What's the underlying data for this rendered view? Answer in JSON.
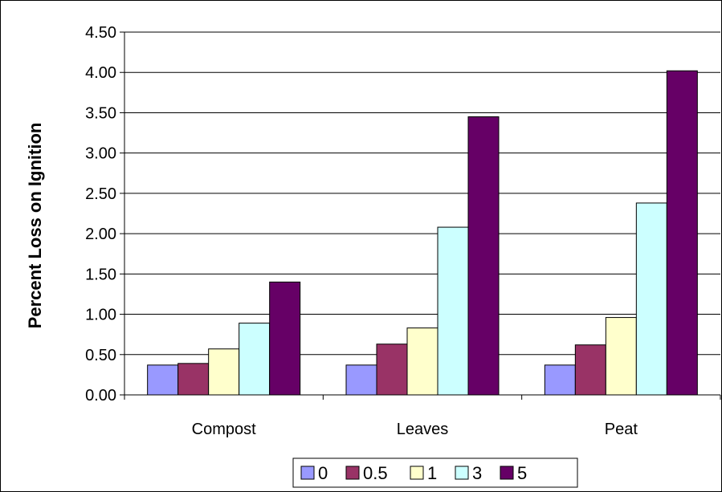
{
  "chart_data": {
    "type": "bar",
    "title": "",
    "xlabel": "",
    "ylabel": "Percent Loss on Ignition",
    "ylim": [
      0,
      4.5
    ],
    "ytick_step": 0.5,
    "ytick_labels": [
      "0.00",
      "0.50",
      "1.00",
      "1.50",
      "2.00",
      "2.50",
      "3.00",
      "3.50",
      "4.00",
      "4.50"
    ],
    "grid": true,
    "legend_position": "bottom",
    "categories": [
      "Compost",
      "Leaves",
      "Peat"
    ],
    "series": [
      {
        "name": "0",
        "color": "#9999FF",
        "values": [
          0.37,
          0.37,
          0.37
        ]
      },
      {
        "name": "0.5",
        "color": "#993366",
        "values": [
          0.39,
          0.63,
          0.62
        ]
      },
      {
        "name": "1",
        "color": "#FFFFCC",
        "values": [
          0.57,
          0.83,
          0.96
        ]
      },
      {
        "name": "3",
        "color": "#CCFFFF",
        "values": [
          0.89,
          2.08,
          2.38
        ]
      },
      {
        "name": "5",
        "color": "#660066",
        "values": [
          1.4,
          3.45,
          4.02
        ]
      }
    ]
  }
}
